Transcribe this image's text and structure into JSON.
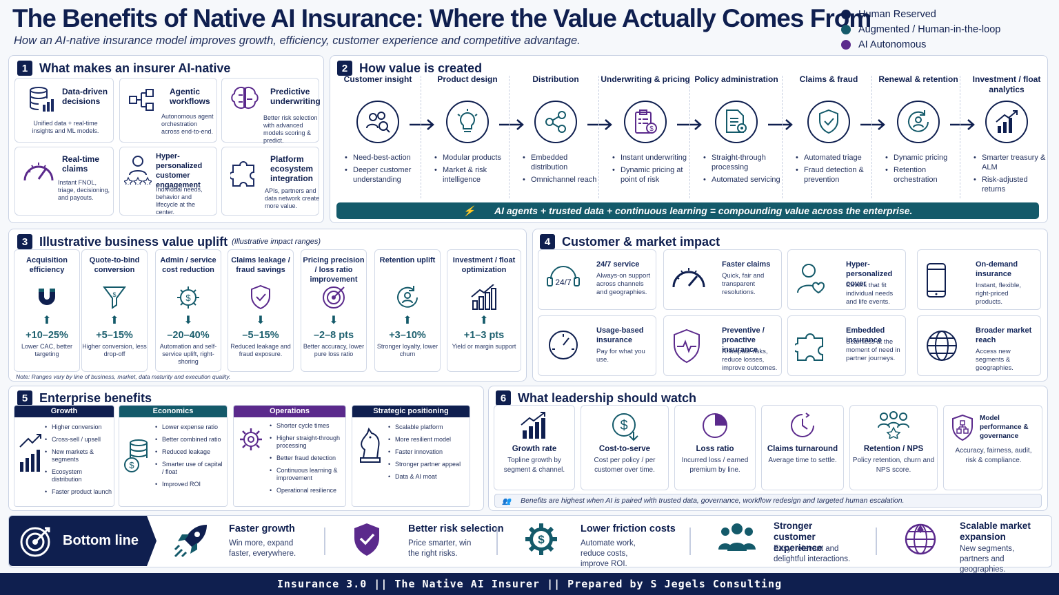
{
  "header": {
    "title": "The Benefits of Native AI Insurance: Where the Value Actually Comes From",
    "subtitle": "How an AI-native insurance model improves growth, efficiency, customer experience and competitive advantage."
  },
  "legend": [
    {
      "label": "Human Reserved",
      "color": "#0f1f4f"
    },
    {
      "label": "Augmented / Human-in-the-loop",
      "color": "#145a6a"
    },
    {
      "label": "AI Autonomous",
      "color": "#5b2a8c"
    }
  ],
  "s1": {
    "num": "1",
    "title": "What makes an insurer AI-native",
    "cards": [
      {
        "title": "Data-driven decisions",
        "desc": "Unified data + real-time insights and ML models."
      },
      {
        "title": "Agentic workflows",
        "desc": "Autonomous agent orchestration across end-to-end."
      },
      {
        "title": "Predictive underwriting",
        "desc": "Better risk selection with advanced models scoring & predict."
      },
      {
        "title": "Real-time claims",
        "desc": "Instant FNOL, triage, decisioning, and payouts."
      },
      {
        "title": "Hyper-personalized customer engagement",
        "desc": "Individual needs, behavior and lifecycle at the center."
      },
      {
        "title": "Platform ecosystem integration",
        "desc": "APIs, partners and data network create more value."
      }
    ]
  },
  "s2": {
    "num": "2",
    "title": "How value is created",
    "stages": [
      {
        "title": "Customer insight",
        "bullets": [
          "Need-best-action",
          "Deeper customer understanding"
        ]
      },
      {
        "title": "Product design",
        "bullets": [
          "Modular products",
          "Market & risk intelligence"
        ]
      },
      {
        "title": "Distribution",
        "bullets": [
          "Embedded distribution",
          "Omnichannel reach"
        ]
      },
      {
        "title": "Underwriting & pricing",
        "bullets": [
          "Instant underwriting",
          "Dynamic pricing at point of risk"
        ]
      },
      {
        "title": "Policy administration",
        "bullets": [
          "Straight-through processing",
          "Automated servicing"
        ]
      },
      {
        "title": "Claims & fraud",
        "bullets": [
          "Automated triage",
          "Fraud detection & prevention"
        ]
      },
      {
        "title": "Renewal & retention",
        "bullets": [
          "Dynamic pricing",
          "Retention orchestration"
        ]
      },
      {
        "title": "Investment / float analytics",
        "bullets": [
          "Smarter treasury & ALM",
          "Risk-adjusted returns"
        ]
      }
    ],
    "banner": "AI agents + trusted data + continuous learning = compounding value across the enterprise."
  },
  "s3": {
    "num": "3",
    "title": "Illustrative business value uplift",
    "note_title": "(Illustrative impact ranges)",
    "metrics": [
      {
        "title": "Acquisition efficiency",
        "value": "+10–25%",
        "desc": "Lower CAC, better targeting",
        "dir": "up"
      },
      {
        "title": "Quote-to-bind conversion",
        "value": "+5–15%",
        "desc": "Higher conversion, less drop-off",
        "dir": "up"
      },
      {
        "title": "Admin / service cost reduction",
        "value": "–20–40%",
        "desc": "Automation and self-service uplift, right-shoring",
        "dir": "down"
      },
      {
        "title": "Claims leakage / fraud savings",
        "value": "–5–15%",
        "desc": "Reduced leakage and fraud exposure.",
        "dir": "down"
      },
      {
        "title": "Pricing precision / loss ratio improvement",
        "value": "–2–8 pts",
        "desc": "Better accuracy, lower pure loss ratio",
        "dir": "down"
      },
      {
        "title": "Retention uplift",
        "value": "+3–10%",
        "desc": "Stronger loyalty, lower churn",
        "dir": "up"
      },
      {
        "title": "Investment / float optimization",
        "value": "+1–3 pts",
        "desc": "Yield or margin support",
        "dir": "up"
      }
    ],
    "note": "Note: Ranges vary by line of business, market, data maturity and execution quality."
  },
  "s4": {
    "num": "4",
    "title": "Customer & market impact",
    "cards": [
      {
        "title": "24/7 service",
        "desc": "Always-on support across channels and geographies."
      },
      {
        "title": "Faster claims",
        "desc": "Quick, fair and transparent resolutions."
      },
      {
        "title": "Hyper-personalized cover",
        "desc": "Covers that fit individual needs and life events."
      },
      {
        "title": "On-demand insurance",
        "desc": "Instant, flexible, right-priced products."
      },
      {
        "title": "Usage-based insurance",
        "desc": "Pay for what you use."
      },
      {
        "title": "Preventive / proactive insurance",
        "desc": "Anticipate risks, reduce losses, improve outcomes."
      },
      {
        "title": "Embedded insurance",
        "desc": "Seamless at the moment of need in partner journeys."
      },
      {
        "title": "Broader market reach",
        "desc": "Access new segments & geographies."
      }
    ]
  },
  "s5": {
    "num": "5",
    "title": "Enterprise benefits",
    "cols": [
      {
        "title": "Growth",
        "color": "#0f1f4f",
        "items": [
          "Higher conversion",
          "Cross-sell / upsell",
          "New markets & segments",
          "Ecosystem distribution",
          "Faster product launch"
        ]
      },
      {
        "title": "Economics",
        "color": "#145a6a",
        "items": [
          "Lower expense ratio",
          "Better combined ratio",
          "Reduced leakage",
          "Smarter use of capital / float",
          "Improved ROI"
        ]
      },
      {
        "title": "Operations",
        "color": "#5b2a8c",
        "items": [
          "Shorter cycle times",
          "Higher straight-through processing",
          "Better fraud detection",
          "Continuous learning & improvement",
          "Operational resilience"
        ]
      },
      {
        "title": "Strategic positioning",
        "color": "#0f1f4f",
        "items": [
          "Scalable platform",
          "More resilient model",
          "Faster innovation",
          "Stronger partner appeal",
          "Data & AI moat"
        ]
      }
    ]
  },
  "s6": {
    "num": "6",
    "title": "What leadership should watch",
    "cards": [
      {
        "title": "Growth rate",
        "desc": "Topline growth by segment & channel."
      },
      {
        "title": "Cost-to-serve",
        "desc": "Cost per policy / per customer over time."
      },
      {
        "title": "Loss ratio",
        "desc": "Incurred loss / earned premium by line."
      },
      {
        "title": "Claims turnaround",
        "desc": "Average time to settle."
      },
      {
        "title": "Retention / NPS",
        "desc": "Policy retention, churn and NPS score."
      },
      {
        "title": "Model performance & governance",
        "desc": "Accuracy, fairness, audit, risk & compliance."
      }
    ],
    "note": "Benefits are highest when AI is paired with trusted data, governance, workflow redesign and targeted human escalation."
  },
  "bottom": {
    "label": "Bottom line",
    "items": [
      {
        "title": "Faster growth",
        "desc": "Win more, expand faster, everywhere."
      },
      {
        "title": "Better risk selection",
        "desc": "Price smarter, win the right risks."
      },
      {
        "title": "Lower friction costs",
        "desc": "Automate work, reduce costs, improve ROI."
      },
      {
        "title": "Stronger customer experience",
        "desc": "Easy, relevant and delightful interactions."
      },
      {
        "title": "Scalable market expansion",
        "desc": "New segments, partners and geographies."
      }
    ]
  },
  "footer": "Insurance 3.0   ||   The Native AI Insurer   ||   Prepared by S Jegels Consulting"
}
